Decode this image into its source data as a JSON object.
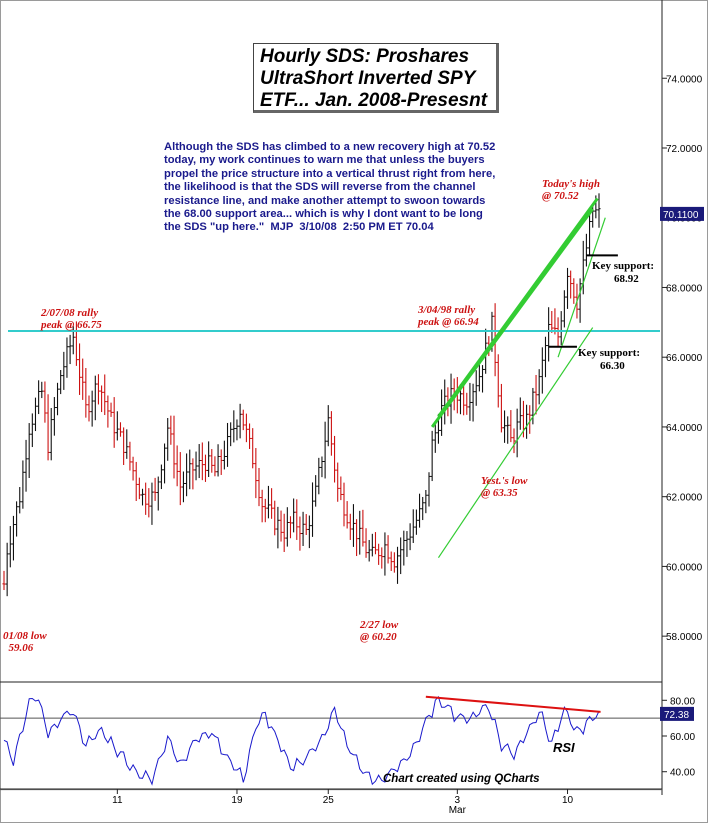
{
  "title_lines": [
    "Hourly SDS: Proshares",
    "UltraShort Inverted SPY",
    "ETF... Jan. 2008-Presesnt"
  ],
  "commentary": "Although the SDS has climbed to a new recovery high at 70.52\ntoday, my work continues to warn me that unless the buyers\npropel the price structure into a vertical thrust right from here,\nthe likelihood is that the SDS will reverse from the channel\nresistance line, and make another attempt to swoon towards\nthe 68.00 support area... which is why I dont want to be long\nthe SDS \"up here.\"  MJP  3/10/08  2:50 PM ET 70.04",
  "annotations": {
    "feb07_peak": "2/07/08 rally\npeak @ 66.75",
    "mar04_peak": "3/04/98 rally\npeak @ 66.94",
    "todays_high": "Today's high\n@ 70.52",
    "jan_low": "01/08 low\n  59.06",
    "feb27_low": "2/27 low\n@ 60.20",
    "yest_low": "Yest.'s low\n@ 63.35",
    "key_support_upper": "Key support:\n        68.92",
    "key_support_lower": "Key support:\n        66.30"
  },
  "rsi_label": "RSI",
  "credit": "Chart created using QCharts",
  "colors": {
    "bar_up": "#111111",
    "bar_down": "#cc1111",
    "channel": "#33cc33",
    "resistance": "#33cccc",
    "rsi_line": "#1a1acc",
    "rsi_trend": "#dd1111",
    "last_price_box": "#1a1a7a"
  },
  "chart_data": {
    "type": "bar",
    "subtype": "hourly OHLC bars",
    "ylim": [
      56.8,
      75.9
    ],
    "yticks": [
      "58.0000",
      "60.0000",
      "62.0000",
      "64.0000",
      "66.0000",
      "68.0000",
      "70.0000",
      "72.0000",
      "74.0000"
    ],
    "ytick_values": [
      58,
      60,
      62,
      64,
      66,
      68,
      70,
      72,
      74
    ],
    "last_price_label": "70.1100",
    "last_price": 70.11,
    "xtick_labels": [
      "11",
      "19",
      "25",
      "3",
      "10"
    ],
    "month_label": "Mar",
    "resistance_level": 66.75,
    "key_support_levels": [
      68.92,
      66.3
    ],
    "anchors": [
      {
        "x": 0,
        "y": 59.5
      },
      {
        "x": 1,
        "y": 60.5
      },
      {
        "x": 5,
        "y": 62
      },
      {
        "x": 8,
        "y": 64
      },
      {
        "x": 12,
        "y": 65
      },
      {
        "x": 14,
        "y": 63.5
      },
      {
        "x": 18,
        "y": 65.5
      },
      {
        "x": 22,
        "y": 66.6
      },
      {
        "x": 26,
        "y": 64.5
      },
      {
        "x": 30,
        "y": 65.3
      },
      {
        "x": 34,
        "y": 64.2
      },
      {
        "x": 38,
        "y": 63.5
      },
      {
        "x": 44,
        "y": 62
      },
      {
        "x": 48,
        "y": 62
      },
      {
        "x": 52,
        "y": 64
      },
      {
        "x": 56,
        "y": 62.3
      },
      {
        "x": 60,
        "y": 62.8
      },
      {
        "x": 64,
        "y": 63
      },
      {
        "x": 67,
        "y": 62.7
      },
      {
        "x": 71,
        "y": 63.5
      },
      {
        "x": 75,
        "y": 64.5
      },
      {
        "x": 79,
        "y": 63.1
      },
      {
        "x": 82,
        "y": 61.8
      },
      {
        "x": 86,
        "y": 61.3
      },
      {
        "x": 89,
        "y": 61
      },
      {
        "x": 92,
        "y": 61.3
      },
      {
        "x": 96,
        "y": 61
      },
      {
        "x": 99,
        "y": 62.1
      },
      {
        "x": 103,
        "y": 64.2
      },
      {
        "x": 106,
        "y": 62.2
      },
      {
        "x": 110,
        "y": 61.3
      },
      {
        "x": 115,
        "y": 60.5
      },
      {
        "x": 117,
        "y": 60.3
      },
      {
        "x": 121,
        "y": 60.6
      },
      {
        "x": 124,
        "y": 60.2
      },
      {
        "x": 128,
        "y": 60.8
      },
      {
        "x": 132,
        "y": 61.5
      },
      {
        "x": 134,
        "y": 61.9
      },
      {
        "x": 136,
        "y": 63.5
      },
      {
        "x": 139,
        "y": 64.5
      },
      {
        "x": 143,
        "y": 65
      },
      {
        "x": 147,
        "y": 64.8
      },
      {
        "x": 151,
        "y": 65.5
      },
      {
        "x": 155,
        "y": 66.9
      },
      {
        "x": 158,
        "y": 64.2
      },
      {
        "x": 161,
        "y": 63.6
      },
      {
        "x": 163,
        "y": 64
      },
      {
        "x": 166,
        "y": 64.2
      },
      {
        "x": 170,
        "y": 65.3
      },
      {
        "x": 173,
        "y": 66.8
      },
      {
        "x": 176,
        "y": 66.6
      },
      {
        "x": 179,
        "y": 68.5
      },
      {
        "x": 182,
        "y": 67.6
      },
      {
        "x": 184,
        "y": 68.6
      },
      {
        "x": 187,
        "y": 70.2
      },
      {
        "x": 189,
        "y": 70.1
      }
    ],
    "rsi": {
      "ylim": [
        32,
        88
      ],
      "yticks": [
        "40.00",
        "60.00",
        "80.00"
      ],
      "ytick_values": [
        40,
        60,
        80
      ],
      "last_value_label": "72.38",
      "last_value": 72.38,
      "reference_lines": [
        70,
        30
      ],
      "anchors": [
        {
          "x": 0,
          "y": 58
        },
        {
          "x": 3,
          "y": 45
        },
        {
          "x": 8,
          "y": 78
        },
        {
          "x": 11,
          "y": 82
        },
        {
          "x": 14,
          "y": 60
        },
        {
          "x": 18,
          "y": 70
        },
        {
          "x": 22,
          "y": 74
        },
        {
          "x": 26,
          "y": 55
        },
        {
          "x": 31,
          "y": 63
        },
        {
          "x": 36,
          "y": 52
        },
        {
          "x": 42,
          "y": 40
        },
        {
          "x": 47,
          "y": 35
        },
        {
          "x": 52,
          "y": 60
        },
        {
          "x": 56,
          "y": 44
        },
        {
          "x": 61,
          "y": 58
        },
        {
          "x": 66,
          "y": 62
        },
        {
          "x": 71,
          "y": 48
        },
        {
          "x": 76,
          "y": 36
        },
        {
          "x": 80,
          "y": 65
        },
        {
          "x": 83,
          "y": 72
        },
        {
          "x": 87,
          "y": 57
        },
        {
          "x": 91,
          "y": 42
        },
        {
          "x": 96,
          "y": 48
        },
        {
          "x": 100,
          "y": 56
        },
        {
          "x": 105,
          "y": 74
        },
        {
          "x": 109,
          "y": 55
        },
        {
          "x": 113,
          "y": 43
        },
        {
          "x": 117,
          "y": 35
        },
        {
          "x": 121,
          "y": 36
        },
        {
          "x": 127,
          "y": 46
        },
        {
          "x": 131,
          "y": 56
        },
        {
          "x": 134,
          "y": 67
        },
        {
          "x": 137,
          "y": 78
        },
        {
          "x": 140,
          "y": 79
        },
        {
          "x": 143,
          "y": 72
        },
        {
          "x": 147,
          "y": 69
        },
        {
          "x": 151,
          "y": 74
        },
        {
          "x": 154,
          "y": 77
        },
        {
          "x": 158,
          "y": 55
        },
        {
          "x": 162,
          "y": 50
        },
        {
          "x": 166,
          "y": 62
        },
        {
          "x": 170,
          "y": 74
        },
        {
          "x": 174,
          "y": 56
        },
        {
          "x": 178,
          "y": 74
        },
        {
          "x": 182,
          "y": 62
        },
        {
          "x": 186,
          "y": 68
        },
        {
          "x": 189,
          "y": 72.4
        }
      ]
    }
  }
}
